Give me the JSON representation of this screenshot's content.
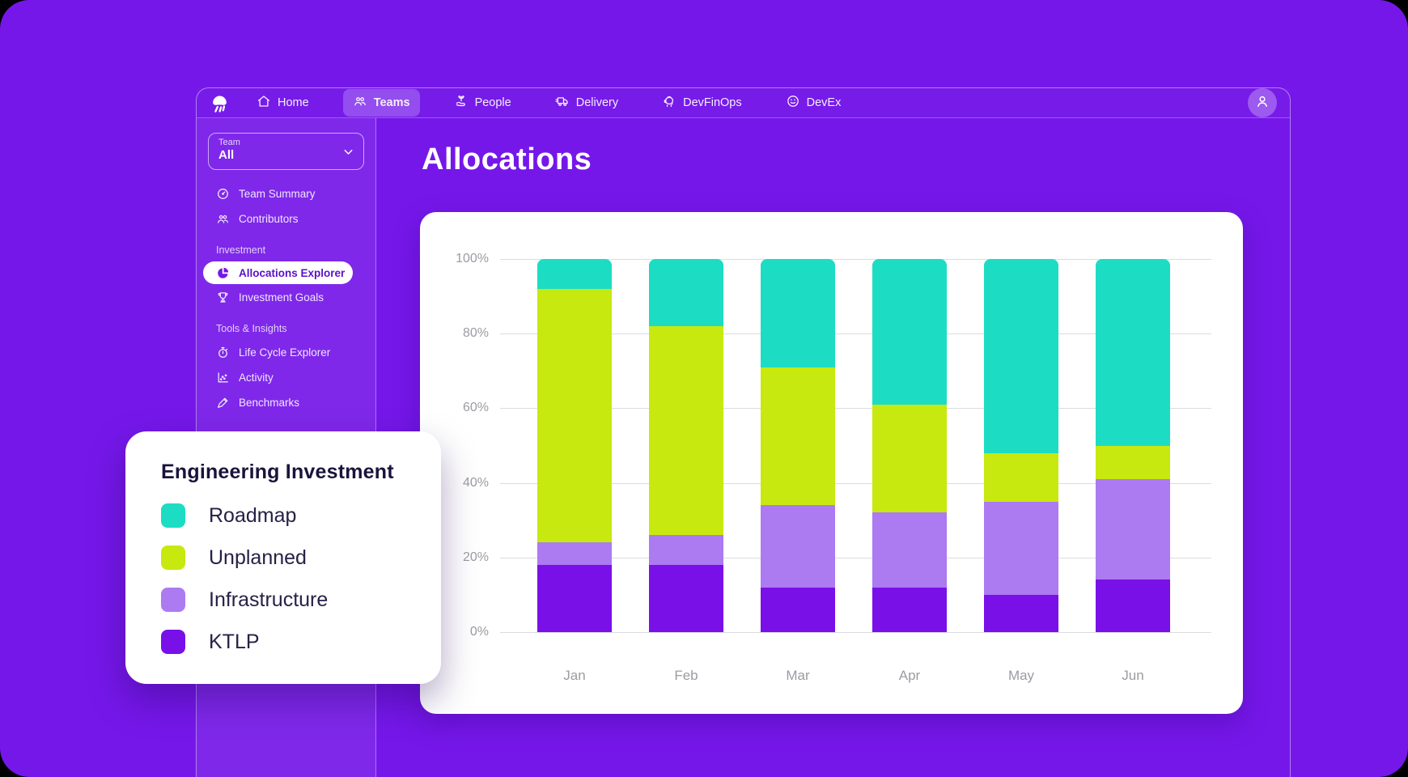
{
  "app": {
    "name": "jellyfish",
    "logo_icon": "jellyfish-logo-icon"
  },
  "navbar": {
    "items": [
      {
        "label": "Home",
        "icon": "home-icon",
        "active": false
      },
      {
        "label": "Teams",
        "icon": "teams-icon",
        "active": true
      },
      {
        "label": "People",
        "icon": "people-icon",
        "active": false
      },
      {
        "label": "Delivery",
        "icon": "delivery-icon",
        "active": false
      },
      {
        "label": "DevFinOps",
        "icon": "devfinops-icon",
        "active": false
      },
      {
        "label": "DevEx",
        "icon": "devex-icon",
        "active": false
      }
    ],
    "avatar_icon": "user-icon"
  },
  "sidebar": {
    "team_selector": {
      "label": "Team",
      "value": "All",
      "chevron_icon": "chevron-down-icon"
    },
    "groups": [
      {
        "header": "",
        "items": [
          {
            "label": "Team Summary",
            "icon": "gauge-icon",
            "active": false
          },
          {
            "label": "Contributors",
            "icon": "contributors-icon",
            "active": false
          }
        ]
      },
      {
        "header": "Investment",
        "items": [
          {
            "label": "Allocations Explorer",
            "icon": "pie-chart-icon",
            "active": true
          },
          {
            "label": "Investment Goals",
            "icon": "trophy-icon",
            "active": false
          }
        ]
      },
      {
        "header": "Tools & Insights",
        "items": [
          {
            "label": "Life Cycle Explorer",
            "icon": "stopwatch-icon",
            "active": false
          },
          {
            "label": "Activity",
            "icon": "activity-icon",
            "active": false
          },
          {
            "label": "Benchmarks",
            "icon": "benchmark-icon",
            "active": false
          }
        ]
      }
    ]
  },
  "main": {
    "title": "Allocations"
  },
  "legend_card": {
    "title": "Engineering Investment",
    "entries": [
      {
        "label": "Roadmap",
        "color": "#1ddcc4"
      },
      {
        "label": "Unplanned",
        "color": "#c7e90f"
      },
      {
        "label": "Infrastructure",
        "color": "#ac7af1"
      },
      {
        "label": "KTLP",
        "color": "#7a10e8"
      }
    ]
  },
  "chart_data": {
    "type": "bar",
    "variant": "stacked-percent",
    "title": "Allocations",
    "categories": [
      "Jan",
      "Feb",
      "Mar",
      "Apr",
      "May",
      "Jun"
    ],
    "series": [
      {
        "name": "Roadmap",
        "color": "#1ddcc4",
        "values": [
          8,
          18,
          29,
          39,
          52,
          50
        ]
      },
      {
        "name": "Unplanned",
        "color": "#c7e90f",
        "values": [
          68,
          56,
          37,
          29,
          13,
          9
        ]
      },
      {
        "name": "Infrastructure",
        "color": "#ac7af1",
        "values": [
          6,
          8,
          22,
          20,
          25,
          27
        ]
      },
      {
        "name": "KTLP",
        "color": "#7a10e8",
        "values": [
          18,
          18,
          12,
          12,
          10,
          14
        ]
      }
    ],
    "stack_order_top_to_bottom": [
      "Roadmap",
      "Unplanned",
      "Infrastructure",
      "KTLP"
    ],
    "xlabel": "",
    "ylabel": "",
    "ylim": [
      0,
      100
    ],
    "yticks": [
      "0%",
      "20%",
      "40%",
      "60%",
      "80%",
      "100%"
    ],
    "grid": "horizontal",
    "legend_position": "floating-card"
  },
  "colors": {
    "background": "#7517e9",
    "window_border": "rgba(230,210,255,0.55)",
    "gridline": "#dcdce0",
    "axis_text": "#9b9ca2"
  }
}
